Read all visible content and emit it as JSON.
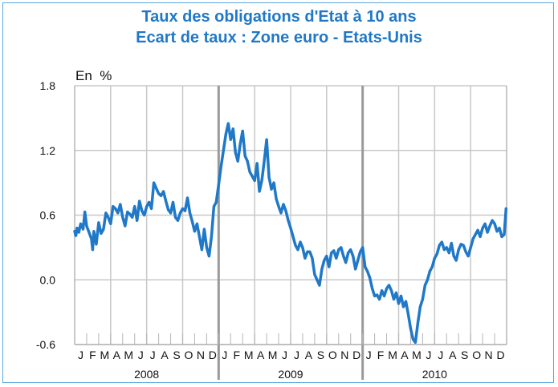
{
  "chart_data": {
    "type": "line",
    "title": "Taux des obligations d'Etat à 10 ans",
    "subtitle": "Ecart de taux : Zone euro - Etats-Unis",
    "unit_label": "En  %",
    "ylim": [
      -0.6,
      1.8
    ],
    "yticks": [
      "1.8",
      "1.2",
      "0.6",
      "0.0",
      "-0.6"
    ],
    "ytick_values": [
      1.8,
      1.2,
      0.6,
      0.0,
      -0.6
    ],
    "grid": true,
    "month_labels": [
      "J",
      "F",
      "M",
      "A",
      "M",
      "J",
      "J",
      "A",
      "S",
      "O",
      "N",
      "D",
      "J",
      "F",
      "M",
      "A",
      "M",
      "J",
      "J",
      "A",
      "S",
      "O",
      "N",
      "D",
      "J",
      "F",
      "M",
      "A",
      "M",
      "J",
      "J",
      "A",
      "S",
      "O",
      "N",
      "D"
    ],
    "years": [
      "2008",
      "2009",
      "2010"
    ],
    "color": "#1f78c8",
    "series": [
      {
        "x": [
          0.0,
          0.1,
          0.2,
          0.35,
          0.5,
          0.7,
          0.85,
          1.0,
          1.2,
          1.4,
          1.5,
          1.6,
          1.8,
          2.0,
          2.2,
          2.4,
          2.6,
          2.8,
          3.0,
          3.2,
          3.4,
          3.6,
          3.8,
          4.0,
          4.2,
          4.4,
          4.6,
          4.8,
          5.0,
          5.2,
          5.4,
          5.6,
          5.8,
          6.0,
          6.2,
          6.4,
          6.6,
          6.8,
          7.0,
          7.2,
          7.4,
          7.6,
          7.8,
          8.0,
          8.2,
          8.4,
          8.6,
          8.8,
          9.0,
          9.2,
          9.4,
          9.6,
          9.8,
          10.0,
          10.2,
          10.4,
          10.6,
          10.8,
          11.0,
          11.2,
          11.4,
          11.6,
          11.8,
          12.0,
          12.2,
          12.4,
          12.6,
          12.8,
          13.0,
          13.2,
          13.4,
          13.6,
          13.8,
          14.0,
          14.2,
          14.4,
          14.6,
          14.8,
          15.0,
          15.2,
          15.4,
          15.6,
          15.8,
          16.0,
          16.2,
          16.4,
          16.6,
          16.8,
          17.0,
          17.2,
          17.4,
          17.6,
          17.8,
          18.0,
          18.2,
          18.4,
          18.6,
          18.8,
          19.0,
          19.2,
          19.4,
          19.6,
          19.8,
          20.0,
          20.2,
          20.4,
          20.6,
          20.8,
          21.0,
          21.2,
          21.4,
          21.6,
          21.8,
          22.0,
          22.2,
          22.4,
          22.6,
          22.8,
          23.0,
          23.2,
          23.4,
          23.6,
          23.8,
          24.0,
          24.2,
          24.4,
          24.6,
          24.8,
          25.0,
          25.2,
          25.4,
          25.6,
          25.8,
          26.0,
          26.2,
          26.4,
          26.6,
          26.8,
          27.0,
          27.2,
          27.4,
          27.6,
          27.8,
          28.0,
          28.2,
          28.4,
          28.6,
          28.8,
          29.0,
          29.2,
          29.4,
          29.6,
          29.8,
          30.0,
          30.2,
          30.4,
          30.6,
          30.8,
          31.0,
          31.2,
          31.4,
          31.6,
          31.8,
          32.0,
          32.2,
          32.4,
          32.6,
          32.8,
          33.0,
          33.2,
          33.4,
          33.6,
          33.8,
          34.0,
          34.2,
          34.4,
          34.6,
          34.8,
          35.0,
          35.2,
          35.4,
          35.6,
          35.8,
          35.95
        ],
        "values": [
          0.45,
          0.41,
          0.48,
          0.44,
          0.52,
          0.47,
          0.63,
          0.5,
          0.44,
          0.38,
          0.28,
          0.45,
          0.33,
          0.53,
          0.43,
          0.47,
          0.62,
          0.58,
          0.52,
          0.68,
          0.66,
          0.62,
          0.7,
          0.58,
          0.5,
          0.63,
          0.61,
          0.58,
          0.68,
          0.55,
          0.73,
          0.64,
          0.6,
          0.68,
          0.72,
          0.66,
          0.9,
          0.85,
          0.8,
          0.78,
          0.82,
          0.73,
          0.65,
          0.62,
          0.72,
          0.58,
          0.55,
          0.62,
          0.66,
          0.64,
          0.76,
          0.62,
          0.54,
          0.45,
          0.52,
          0.4,
          0.28,
          0.47,
          0.3,
          0.22,
          0.4,
          0.68,
          0.72,
          0.88,
          1.05,
          1.2,
          1.35,
          1.45,
          1.3,
          1.4,
          1.18,
          1.1,
          1.26,
          1.38,
          1.15,
          1.1,
          1.0,
          0.96,
          0.92,
          1.08,
          0.82,
          0.92,
          1.1,
          1.3,
          0.95,
          0.84,
          0.9,
          0.75,
          0.68,
          0.62,
          0.7,
          0.64,
          0.55,
          0.48,
          0.4,
          0.32,
          0.28,
          0.35,
          0.3,
          0.2,
          0.26,
          0.26,
          0.2,
          0.05,
          0.0,
          -0.05,
          0.1,
          0.18,
          0.22,
          0.12,
          0.25,
          0.27,
          0.2,
          0.28,
          0.3,
          0.22,
          0.16,
          0.25,
          0.28,
          0.22,
          0.1,
          0.18,
          0.26,
          0.3,
          0.12,
          0.08,
          0.02,
          -0.08,
          -0.15,
          -0.14,
          -0.18,
          -0.1,
          -0.15,
          -0.08,
          -0.05,
          -0.1,
          -0.18,
          -0.12,
          -0.22,
          -0.15,
          -0.25,
          -0.2,
          -0.32,
          -0.45,
          -0.55,
          -0.58,
          -0.4,
          -0.25,
          -0.18,
          -0.05,
          0.0,
          0.08,
          0.12,
          0.2,
          0.24,
          0.32,
          0.35,
          0.28,
          0.3,
          0.25,
          0.34,
          0.22,
          0.18,
          0.28,
          0.33,
          0.32,
          0.26,
          0.22,
          0.3,
          0.38,
          0.42,
          0.46,
          0.4,
          0.48,
          0.52,
          0.44,
          0.5,
          0.55,
          0.52,
          0.45,
          0.48,
          0.4,
          0.42,
          0.66
        ]
      }
    ]
  }
}
